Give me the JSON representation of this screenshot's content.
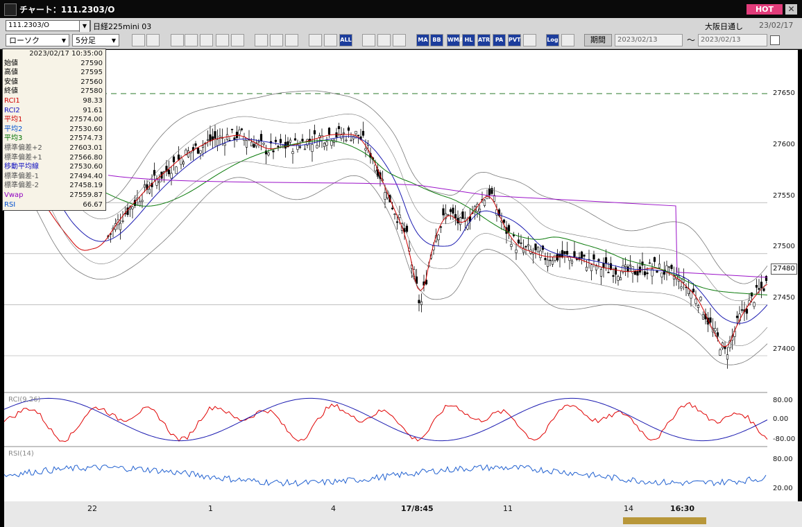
{
  "window": {
    "title": "チャート：111.2303/O",
    "hot_label": "HOT",
    "close_label": "✕"
  },
  "instrument": {
    "code": "111.2303/O",
    "name": "日経225mini 03",
    "exchange": "大阪日通し",
    "date": "23/02/17"
  },
  "toolbar": {
    "chart_type": "ローソク",
    "interval": "5分足",
    "period_label": "期間",
    "date_from": "2023/02/13",
    "date_to": "2023/02/13",
    "tilde": "～",
    "buttons": [
      "MA",
      "BB",
      "WMA",
      "HL",
      "ATR",
      "PA",
      "PVT",
      "Log",
      "ALL"
    ]
  },
  "info": {
    "datetime": "2023/02/17  10:35:00",
    "rows": [
      {
        "label": "始値",
        "value": "27590",
        "color": "#000"
      },
      {
        "label": "高値",
        "value": "27595",
        "color": "#000"
      },
      {
        "label": "安値",
        "value": "27560",
        "color": "#000"
      },
      {
        "label": "終値",
        "value": "27580",
        "color": "#000"
      },
      {
        "label": "RCI1",
        "value": "98.33",
        "color": "#d00000"
      },
      {
        "label": "RCI2",
        "value": "91.61",
        "color": "#1010c0"
      },
      {
        "label": "平均1",
        "value": "27574.00",
        "color": "#d00000"
      },
      {
        "label": "平均2",
        "value": "27530.60",
        "color": "#0050d0"
      },
      {
        "label": "平均3",
        "value": "27574.73",
        "color": "#007000"
      },
      {
        "label": "標準偏差+2",
        "value": "27603.01",
        "color": "#555"
      },
      {
        "label": "標準偏差+1",
        "value": "27566.80",
        "color": "#555"
      },
      {
        "label": "移動平均線",
        "value": "27530.60",
        "color": "#1010c0"
      },
      {
        "label": "標準偏差-1",
        "value": "27494.40",
        "color": "#555"
      },
      {
        "label": "標準偏差-2",
        "value": "27458.19",
        "color": "#555"
      },
      {
        "label": "Vwap",
        "value": "27559.87",
        "color": "#9000c0"
      },
      {
        "label": "RSI",
        "value": "66.67",
        "color": "#0050d0"
      }
    ]
  },
  "price_axis": [
    "27650",
    "27600",
    "27550",
    "27500",
    "27450",
    "27400"
  ],
  "current_price": "27480",
  "rci": {
    "label": "RCI(9,26)",
    "ticks": [
      "80.00",
      "0.00",
      "-80.00"
    ]
  },
  "rsi": {
    "label": "RSI(14)",
    "ticks": [
      "80.00",
      "20.00"
    ]
  },
  "x_axis": [
    "22",
    "1",
    "4",
    "17/8:45",
    "11",
    "14",
    "16:30"
  ],
  "colors": {
    "rci1": "#e00000",
    "rci2": "#1a1ab0",
    "ma_fast": "#d00000",
    "ma_mid": "#1a1ab0",
    "ma_slow": "#0a7a0a",
    "vwap": "#9a10c8",
    "rsi": "#2060d0",
    "bb": "#777777"
  }
}
